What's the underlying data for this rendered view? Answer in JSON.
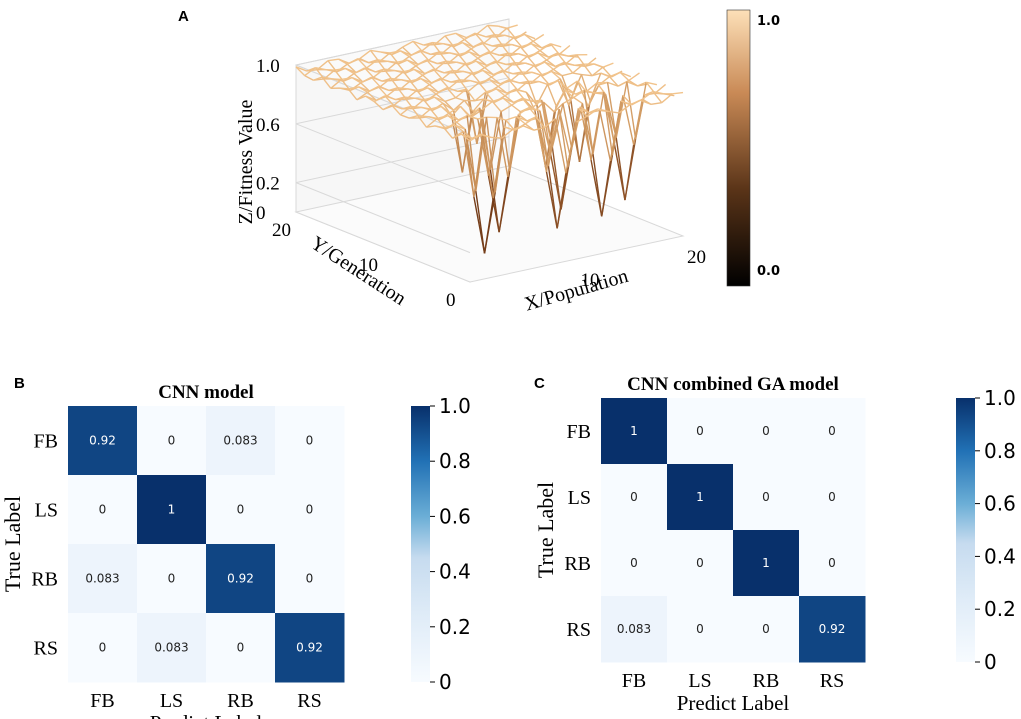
{
  "panels": {
    "a": "A",
    "b": "B",
    "c": "C"
  },
  "chart_data": [
    {
      "type": "surface3d",
      "panel": "A",
      "zlabel": "Z/Fitness Value",
      "ylabel": "Y/Generation",
      "xlabel": "X/Population",
      "ztick_labels": [
        "1.0",
        "0.6",
        "0.2",
        "0"
      ],
      "zticks": [
        1.0,
        0.6,
        0.2,
        0
      ],
      "ytick_labels": [
        "20",
        "10",
        "0"
      ],
      "yticks": [
        20,
        10,
        0
      ],
      "xtick_labels": [
        "10",
        "20"
      ],
      "xticks": [
        10,
        20
      ],
      "xlim": [
        0,
        20
      ],
      "ylim": [
        0,
        20
      ],
      "zlim": [
        0,
        1.0
      ],
      "colorbar": {
        "min": 0.0,
        "max": 1.0,
        "tick_labels": [
          "1.0",
          "0.0"
        ],
        "colors": [
          "#000000",
          "#7a4a28",
          "#f4c08e",
          "#fde0b8"
        ]
      },
      "note": "Fitness surface mostly near 1.0 with several deep drops toward 0.1-0.2 for low generations"
    },
    {
      "type": "heatmap",
      "panel": "B",
      "title": "CNN model",
      "xlabel": "Predict Label",
      "ylabel": "True Label",
      "x_categories": [
        "FB",
        "LS",
        "RB",
        "RS"
      ],
      "y_categories": [
        "FB",
        "LS",
        "RB",
        "RS"
      ],
      "values": [
        [
          0.92,
          0,
          0.083,
          0
        ],
        [
          0,
          1,
          0,
          0
        ],
        [
          0.083,
          0,
          0.92,
          0
        ],
        [
          0,
          0.083,
          0,
          0.92
        ]
      ],
      "value_labels": [
        [
          "0.92",
          "0",
          "0.083",
          "0"
        ],
        [
          "0",
          "1",
          "0",
          "0"
        ],
        [
          "0.083",
          "0",
          "0.92",
          "0"
        ],
        [
          "0",
          "0.083",
          "0",
          "0.92"
        ]
      ],
      "colorbar": {
        "min": 0,
        "max": 1.0,
        "ticks": [
          1.0,
          0.8,
          0.6,
          0.4,
          0.2,
          0
        ],
        "tick_labels": [
          "1.0",
          "0.8",
          "0.6",
          "0.4",
          "0.2",
          "0"
        ]
      }
    },
    {
      "type": "heatmap",
      "panel": "C",
      "title": "CNN combined GA model",
      "xlabel": "Predict Label",
      "ylabel": "True Label",
      "x_categories": [
        "FB",
        "LS",
        "RB",
        "RS"
      ],
      "y_categories": [
        "FB",
        "LS",
        "RB",
        "RS"
      ],
      "values": [
        [
          1,
          0,
          0,
          0
        ],
        [
          0,
          1,
          0,
          0
        ],
        [
          0,
          0,
          1,
          0
        ],
        [
          0.083,
          0,
          0,
          0.92
        ]
      ],
      "value_labels": [
        [
          "1",
          "0",
          "0",
          "0"
        ],
        [
          "0",
          "1",
          "0",
          "0"
        ],
        [
          "0",
          "0",
          "1",
          "0"
        ],
        [
          "0.083",
          "0",
          "0",
          "0.92"
        ]
      ],
      "colorbar": {
        "min": 0,
        "max": 1.0,
        "ticks": [
          1.0,
          0.8,
          0.6,
          0.4,
          0.2,
          0
        ],
        "tick_labels": [
          "1.0",
          "0.8",
          "0.6",
          "0.4",
          "0.2",
          "0"
        ]
      }
    }
  ]
}
